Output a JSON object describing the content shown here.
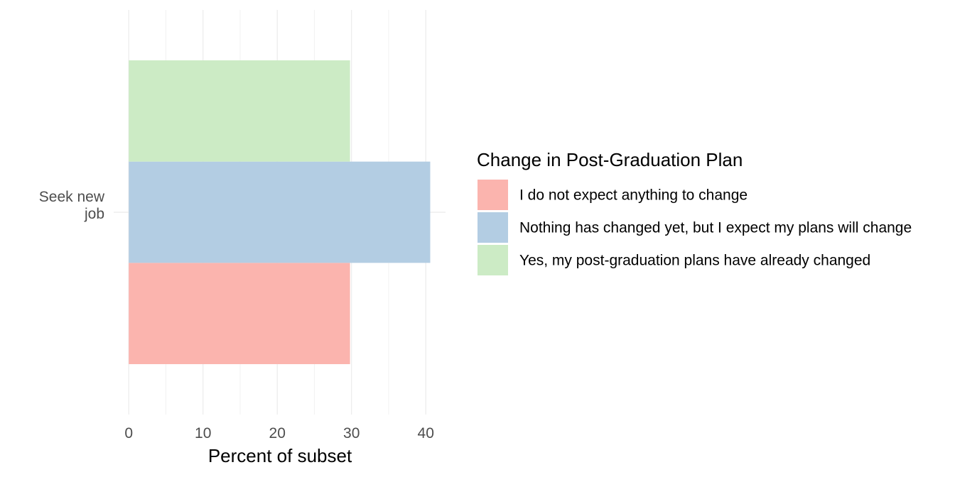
{
  "chart_data": {
    "type": "bar",
    "orientation": "horizontal",
    "categories": [
      "Seek new job"
    ],
    "category_label_lines": [
      [
        "Seek new",
        "job"
      ]
    ],
    "series": [
      {
        "name": "I do not expect anything to change",
        "values": [
          29.8
        ],
        "color": "#FBB4AE"
      },
      {
        "name": "Nothing has changed yet, but I expect my plans will change",
        "values": [
          40.6
        ],
        "color": "#B3CDE3"
      },
      {
        "name": "Yes, my post-graduation plans have already changed",
        "values": [
          29.8
        ],
        "color": "#CCEBC5"
      }
    ],
    "xlabel": "Percent of subset",
    "ylabel": "",
    "xlim": [
      0,
      42.5
    ],
    "xticks": [
      0,
      10,
      20,
      30,
      40
    ],
    "grid": true,
    "legend": {
      "title": "Change in Post-Graduation Plan",
      "position": "right"
    }
  }
}
